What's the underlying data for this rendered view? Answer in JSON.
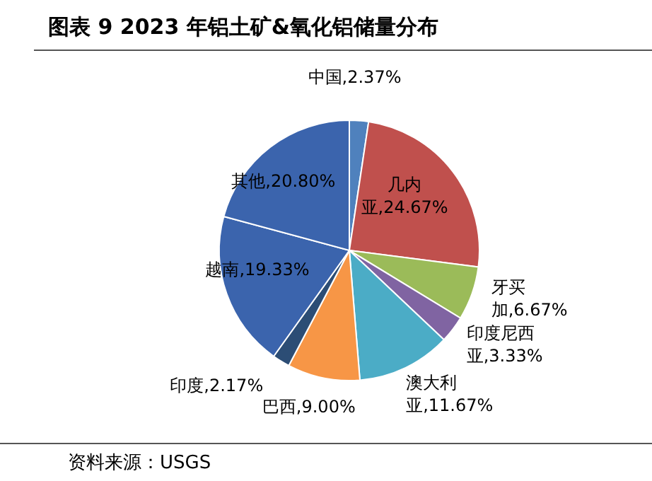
{
  "chart_data": {
    "type": "pie",
    "title": "图表 9 2023 年铝土矿&氧化铝储量分布",
    "categories": [
      "中国",
      "几内亚",
      "牙买加",
      "印度尼西亚",
      "澳大利亚",
      "巴西",
      "印度",
      "越南",
      "其他"
    ],
    "values": [
      2.37,
      24.67,
      6.67,
      3.33,
      11.67,
      9.0,
      2.17,
      19.33,
      20.8
    ],
    "value_labels": [
      "2.37%",
      "24.67%",
      "6.67%",
      "3.33%",
      "11.67%",
      "9.00%",
      "2.17%",
      "19.33%",
      "20.80%"
    ],
    "colors": [
      "#4f81bd",
      "#c0504d",
      "#9bbb59",
      "#8064a2",
      "#4bacc6",
      "#f79646",
      "#2c4d75",
      "#3b64ad",
      "#3b64ad"
    ],
    "annotations": [
      "资料来源：USGS"
    ]
  }
}
